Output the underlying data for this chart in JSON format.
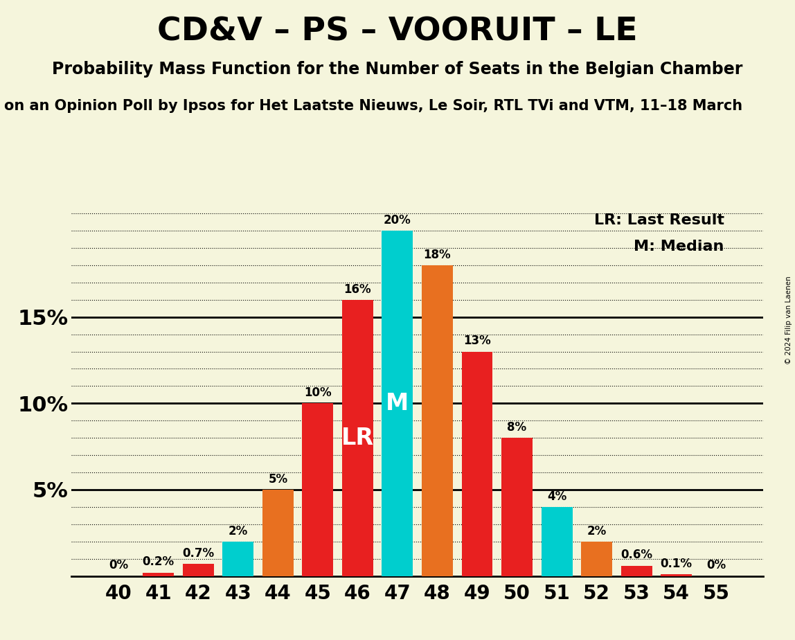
{
  "title": "CD&V – PS – VOORUIT – LE",
  "subtitle": "Probability Mass Function for the Number of Seats in the Belgian Chamber",
  "subtitle2": "on an Opinion Poll by Ipsos for Het Laatste Nieuws, Le Soir, RTL TVi and VTM, 11–18 March",
  "copyright": "© 2024 Filip van Laenen",
  "legend1": "LR: Last Result",
  "legend2": "M: Median",
  "seats": [
    40,
    41,
    42,
    43,
    44,
    45,
    46,
    47,
    48,
    49,
    50,
    51,
    52,
    53,
    54,
    55
  ],
  "probs": [
    0.0,
    0.2,
    0.7,
    2.0,
    5.0,
    10.0,
    16.0,
    20.0,
    18.0,
    13.0,
    8.0,
    4.0,
    2.0,
    0.6,
    0.1,
    0.0
  ],
  "colors": [
    "#e82020",
    "#e82020",
    "#e82020",
    "#00cece",
    "#e87020",
    "#e82020",
    "#e82020",
    "#00cece",
    "#e87020",
    "#e82020",
    "#e82020",
    "#00cece",
    "#e87020",
    "#e82020",
    "#e82020",
    "#e82020"
  ],
  "lr_seat": 46,
  "median_seat": 47,
  "background_color": "#f5f5dc",
  "ylim_max": 21.5,
  "solid_lines": [
    5,
    10,
    15
  ],
  "ytick_positions": [
    5,
    10,
    15
  ],
  "ytick_labels": [
    "5%",
    "10%",
    "15%"
  ]
}
